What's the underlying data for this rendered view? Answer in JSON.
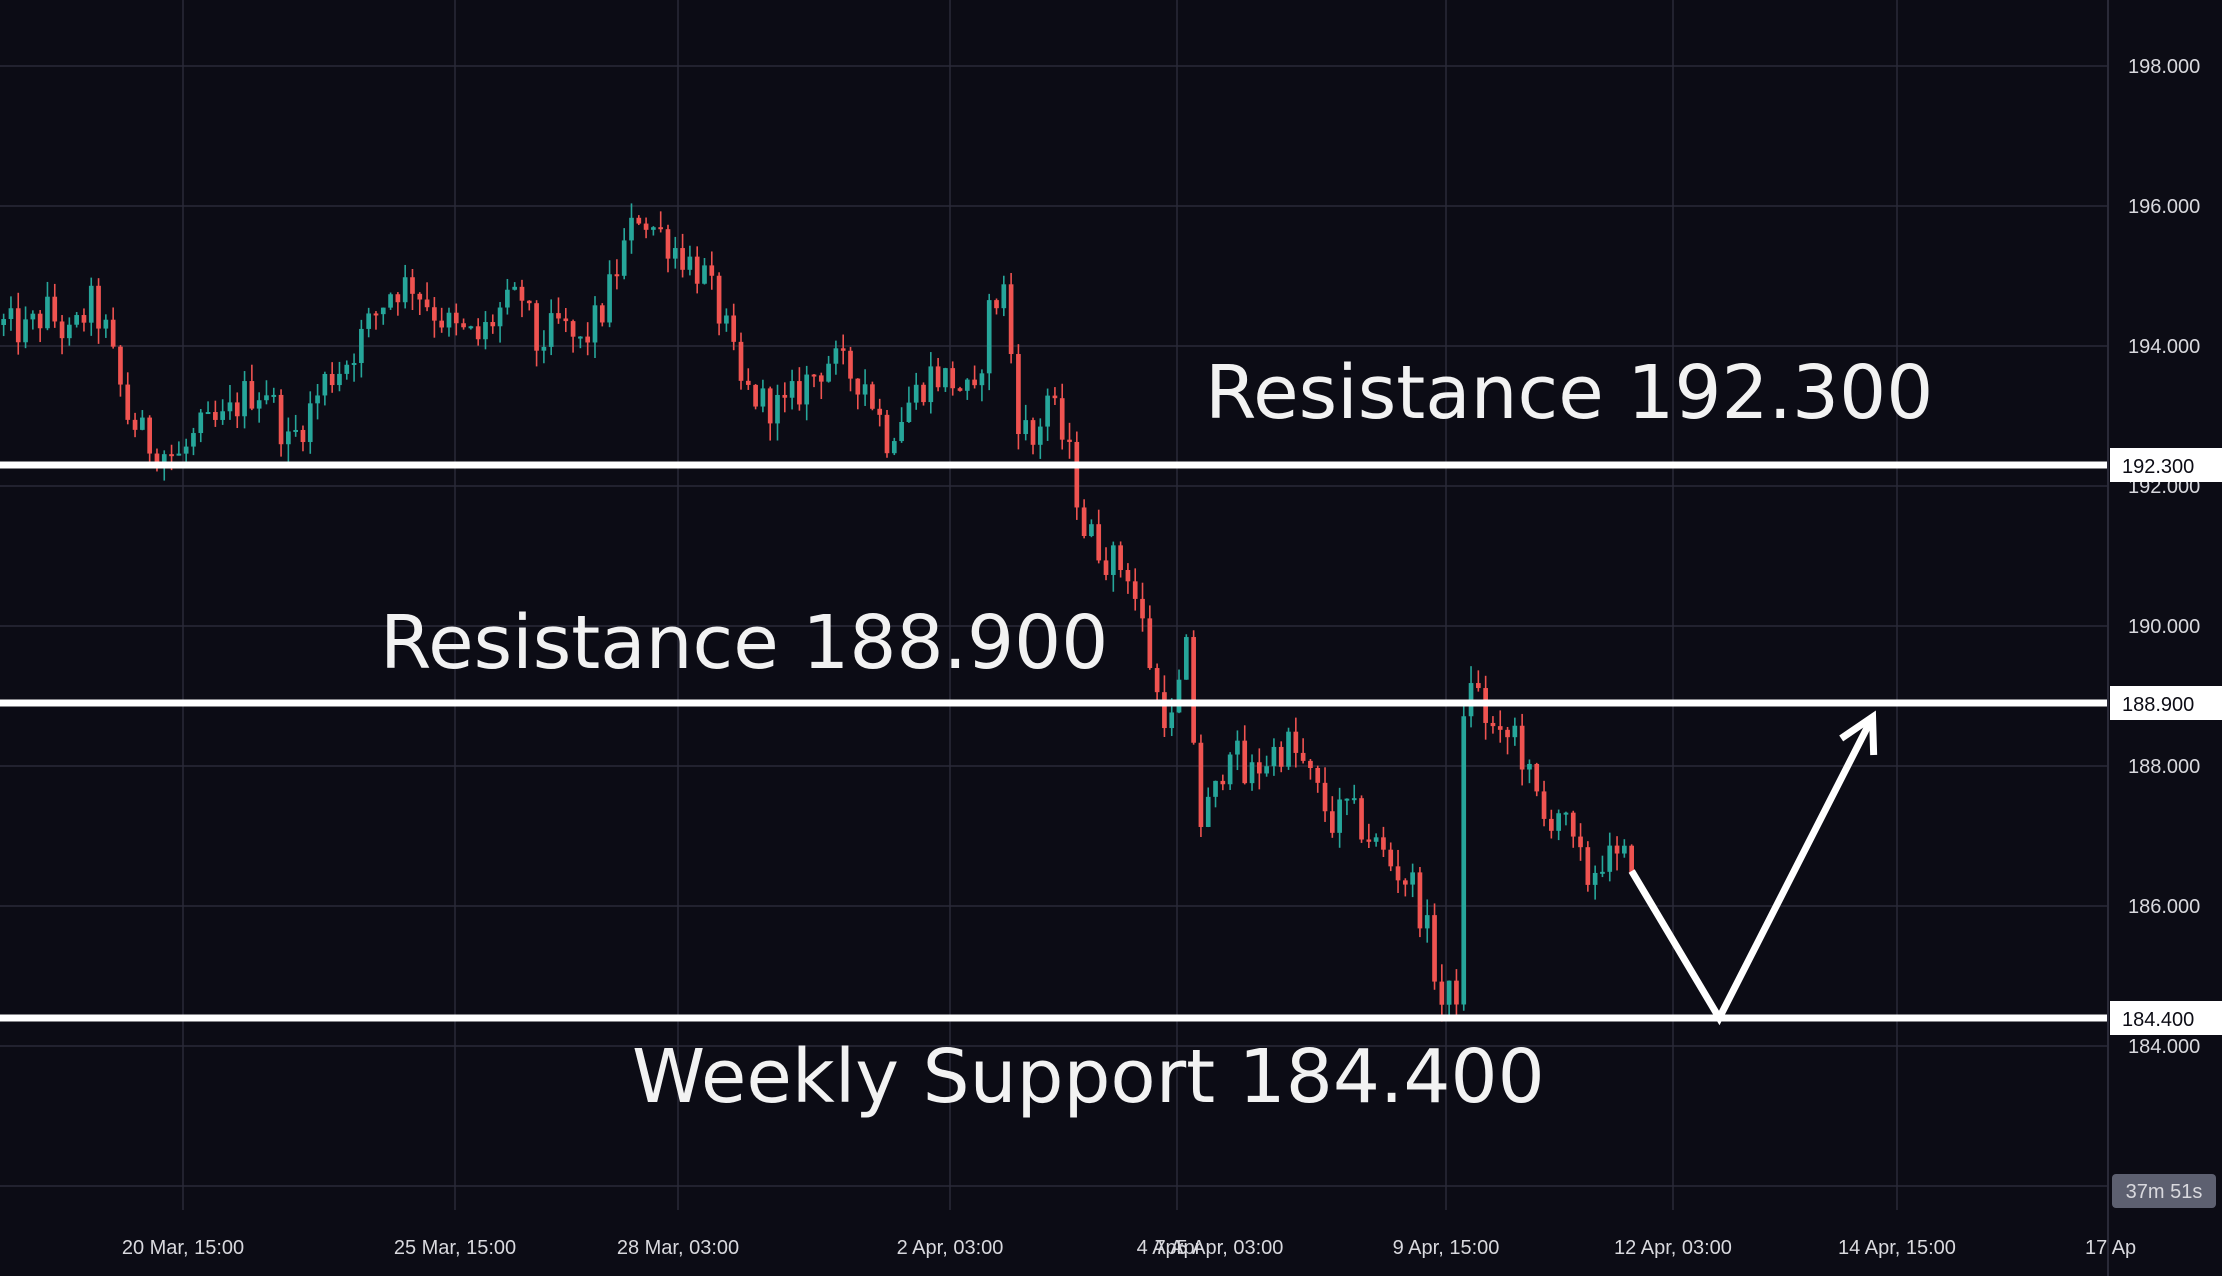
{
  "chart_data": {
    "type": "candlestick",
    "title": "",
    "xlabel": "",
    "ylabel": "",
    "ylim": [
      181.7,
      198.96
    ],
    "grid": true,
    "colors": {
      "background": "#0c0c15",
      "grid": "#2a2a38",
      "up": "#26a69a",
      "down": "#ef5350",
      "level_line": "#ffffff",
      "label_text": "#f2f2f2",
      "axis_text": "#d9d9de",
      "countdown_bg": "#5d6070"
    },
    "y_ticks": [
      "198.000",
      "196.000",
      "194.000",
      "192.000",
      "190.000",
      "188.000",
      "186.000",
      "184.000"
    ],
    "x_ticks": [
      "20 Mar, 15:00",
      "25 Mar, 15:00",
      "28 Mar, 03:00",
      "2 Apr, 03:00",
      "4 Apr",
      "7 Apr",
      "5 Apr, 03:00",
      "9 Apr, 15:00",
      "12 Apr, 03:00",
      "14 Apr, 15:00",
      "17 Ap"
    ],
    "price_path": [
      [
        0,
        194.3
      ],
      [
        3,
        194.2
      ],
      [
        6,
        194.5
      ],
      [
        9,
        194.1
      ],
      [
        12,
        194.6
      ],
      [
        14,
        194.2
      ],
      [
        17,
        193.0
      ],
      [
        20,
        192.6
      ],
      [
        24,
        192.4
      ],
      [
        27,
        192.8
      ],
      [
        30,
        192.9
      ],
      [
        33,
        193.3
      ],
      [
        36,
        193.4
      ],
      [
        39,
        192.6
      ],
      [
        41,
        192.9
      ],
      [
        44,
        193.5
      ],
      [
        47,
        193.8
      ],
      [
        50,
        194.3
      ],
      [
        53,
        194.8
      ],
      [
        56,
        194.9
      ],
      [
        59,
        194.5
      ],
      [
        62,
        194.2
      ],
      [
        65,
        194.1
      ],
      [
        68,
        194.5
      ],
      [
        71,
        194.7
      ],
      [
        73,
        194.0
      ],
      [
        76,
        194.3
      ],
      [
        79,
        194.0
      ],
      [
        82,
        194.5
      ],
      [
        85,
        195.4
      ],
      [
        87,
        195.9
      ],
      [
        90,
        195.6
      ],
      [
        93,
        195.3
      ],
      [
        96,
        195.0
      ],
      [
        99,
        194.2
      ],
      [
        101,
        193.4
      ],
      [
        104,
        193.2
      ],
      [
        107,
        193.1
      ],
      [
        110,
        193.5
      ],
      [
        113,
        193.8
      ],
      [
        116,
        193.6
      ],
      [
        118,
        193.5
      ],
      [
        121,
        192.7
      ],
      [
        124,
        193.2
      ],
      [
        127,
        193.6
      ],
      [
        130,
        193.5
      ],
      [
        133,
        193.2
      ],
      [
        135,
        194.5
      ],
      [
        137,
        194.8
      ],
      [
        139,
        193.0
      ],
      [
        141,
        192.6
      ],
      [
        143,
        193.3
      ],
      [
        146,
        192.4
      ],
      [
        148,
        191.4
      ],
      [
        151,
        191.0
      ],
      [
        154,
        190.8
      ],
      [
        156,
        190.0
      ],
      [
        158,
        189.0
      ],
      [
        160,
        188.6
      ],
      [
        162,
        189.6
      ],
      [
        164,
        187.2
      ],
      [
        166,
        187.6
      ],
      [
        168,
        188.4
      ],
      [
        170,
        187.8
      ],
      [
        172,
        188.0
      ],
      [
        174,
        188.2
      ],
      [
        176,
        188.3
      ],
      [
        178,
        188.0
      ],
      [
        180,
        187.6
      ],
      [
        182,
        187.2
      ],
      [
        184,
        187.4
      ],
      [
        187,
        187.0
      ],
      [
        190,
        186.6
      ],
      [
        193,
        186.3
      ],
      [
        195,
        185.6
      ],
      [
        197,
        184.6
      ],
      [
        199,
        184.8
      ],
      [
        200,
        188.5
      ],
      [
        201,
        189.3
      ],
      [
        203,
        188.7
      ],
      [
        205,
        188.3
      ],
      [
        207,
        188.5
      ],
      [
        209,
        187.8
      ],
      [
        211,
        187.2
      ],
      [
        213,
        187.4
      ],
      [
        215,
        186.8
      ],
      [
        217,
        186.4
      ],
      [
        219,
        186.7
      ],
      [
        221,
        186.6
      ],
      [
        223,
        186.7
      ]
    ],
    "projection_path": [
      [
        186.5,
        0
      ],
      [
        184.4,
        12
      ],
      [
        188.7,
        33
      ]
    ],
    "levels": [
      {
        "value": 192.3,
        "axis_label": "192.300",
        "text": "Resistance 192.300"
      },
      {
        "value": 188.9,
        "axis_label": "188.900",
        "text": "Resistance 188.900"
      },
      {
        "value": 184.4,
        "axis_label": "184.400",
        "text": "Weekly Support 184.400"
      }
    ],
    "countdown": "37m 51s"
  }
}
